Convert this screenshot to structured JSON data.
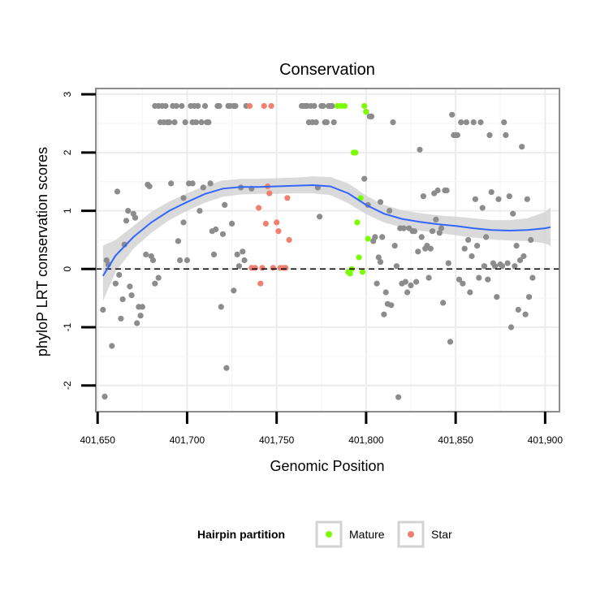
{
  "chart_data": {
    "type": "scatter",
    "title": "Conservation",
    "xlabel": "Genomic Position",
    "ylabel": "phyloP LRT conservation scores",
    "xlim": [
      401649,
      401908
    ],
    "ylim": [
      -2.45,
      3.1
    ],
    "x_ticks": [
      401650,
      401700,
      401750,
      401800,
      401850,
      401900
    ],
    "x_tick_labels": [
      "401,650",
      "401,700",
      "401,750",
      "401,800",
      "401,850",
      "401,900"
    ],
    "y_ticks": [
      -2,
      -1,
      0,
      1,
      2,
      3
    ],
    "y_tick_labels": [
      "-2",
      "-1",
      "0",
      "1",
      "2",
      "3"
    ],
    "grid": true,
    "reference_line": {
      "y": 0,
      "style": "dashed"
    },
    "legend": {
      "title": "Hairpin partition",
      "position": "bottom",
      "entries": [
        {
          "label": "Mature",
          "color": "#7cfc00"
        },
        {
          "label": "Star",
          "color": "#f08070"
        }
      ]
    },
    "colors": {
      "other": "#8c8c8c",
      "Mature": "#7cfc00",
      "Star": "#f08070",
      "smooth_line": "#3366ff",
      "ribbon": "#d3d3d3",
      "panel_border": "#8c8c8c"
    },
    "series": [
      {
        "group": "other",
        "points": [
          [
            401653,
            -0.7
          ],
          [
            401654,
            -2.19
          ],
          [
            401655,
            0.15
          ],
          [
            401656,
            0.08
          ],
          [
            401658,
            -1.32
          ],
          [
            401660,
            -0.25
          ],
          [
            401661,
            1.33
          ],
          [
            401662,
            -0.1
          ],
          [
            401663,
            -0.85
          ],
          [
            401664,
            -0.52
          ],
          [
            401665,
            0.42
          ],
          [
            401666,
            0.83
          ],
          [
            401667,
            1.0
          ],
          [
            401668,
            -0.3
          ],
          [
            401669,
            -0.45
          ],
          [
            401670,
            0.95
          ],
          [
            401671,
            0.88
          ],
          [
            401672,
            -0.93
          ],
          [
            401673,
            -0.65
          ],
          [
            401674,
            -0.8
          ],
          [
            401675,
            -0.65
          ],
          [
            401677,
            0.25
          ],
          [
            401678,
            1.45
          ],
          [
            401679,
            1.42
          ],
          [
            401680,
            0.22
          ],
          [
            401681,
            0.15
          ],
          [
            401682,
            2.8
          ],
          [
            401682,
            -0.25
          ],
          [
            401684,
            2.8
          ],
          [
            401684,
            -0.15
          ],
          [
            401685,
            2.52
          ],
          [
            401686,
            2.8
          ],
          [
            401687,
            2.52
          ],
          [
            401688,
            2.8
          ],
          [
            401689,
            2.52
          ],
          [
            401690,
            2.52
          ],
          [
            401691,
            1.47
          ],
          [
            401692,
            2.8
          ],
          [
            401693,
            2.52
          ],
          [
            401694,
            2.8
          ],
          [
            401695,
            0.48
          ],
          [
            401696,
            0.15
          ],
          [
            401697,
            2.8
          ],
          [
            401698,
            0.8
          ],
          [
            401698,
            1.22
          ],
          [
            401699,
            2.52
          ],
          [
            401700,
            0.15
          ],
          [
            401701,
            1.47
          ],
          [
            401702,
            2.8
          ],
          [
            401703,
            2.52
          ],
          [
            401703,
            1.47
          ],
          [
            401704,
            2.8
          ],
          [
            401705,
            2.52
          ],
          [
            401706,
            2.8
          ],
          [
            401707,
            1.0
          ],
          [
            401708,
            2.52
          ],
          [
            401709,
            1.4
          ],
          [
            401710,
            2.8
          ],
          [
            401711,
            2.52
          ],
          [
            401712,
            2.52
          ],
          [
            401713,
            1.47
          ],
          [
            401714,
            0.65
          ],
          [
            401715,
            0.25
          ],
          [
            401716,
            0.68
          ],
          [
            401717,
            2.8
          ],
          [
            401718,
            2.8
          ],
          [
            401719,
            -0.65
          ],
          [
            401720,
            0.6
          ],
          [
            401721,
            1.1
          ],
          [
            401722,
            -1.7
          ],
          [
            401723,
            2.8
          ],
          [
            401724,
            2.8
          ],
          [
            401725,
            0.78
          ],
          [
            401726,
            2.8
          ],
          [
            401726,
            -0.37
          ],
          [
            401727,
            2.8
          ],
          [
            401728,
            0.25
          ],
          [
            401729,
            0.05
          ],
          [
            401730,
            1.4
          ],
          [
            401731,
            0.3
          ],
          [
            401732,
            0.15
          ],
          [
            401733,
            2.8
          ],
          [
            401736,
            1.38
          ],
          [
            401764,
            2.8
          ],
          [
            401765,
            2.8
          ],
          [
            401766,
            2.8
          ],
          [
            401767,
            2.8
          ],
          [
            401768,
            2.52
          ],
          [
            401769,
            2.8
          ],
          [
            401770,
            2.52
          ],
          [
            401771,
            2.8
          ],
          [
            401772,
            2.52
          ],
          [
            401773,
            1.4
          ],
          [
            401774,
            0.9
          ],
          [
            401775,
            2.8
          ],
          [
            401776,
            2.8
          ],
          [
            401777,
            2.52
          ],
          [
            401778,
            2.52
          ],
          [
            401779,
            2.8
          ],
          [
            401780,
            2.8
          ],
          [
            401781,
            2.8
          ],
          [
            401782,
            2.52
          ],
          [
            401799,
            1.55
          ],
          [
            401800,
            2.7
          ],
          [
            401801,
            1.1
          ],
          [
            401802,
            2.62
          ],
          [
            401803,
            2.62
          ],
          [
            401804,
            0.48
          ],
          [
            401805,
            0.55
          ],
          [
            401806,
            -0.25
          ],
          [
            401807,
            0.2
          ],
          [
            401808,
            1.15
          ],
          [
            401808,
            0.12
          ],
          [
            401809,
            0.55
          ],
          [
            401810,
            -0.78
          ],
          [
            401811,
            -0.4
          ],
          [
            401812,
            -0.6
          ],
          [
            401813,
            1.0
          ],
          [
            401814,
            -0.62
          ],
          [
            401815,
            2.52
          ],
          [
            401816,
            0.4
          ],
          [
            401817,
            0.05
          ],
          [
            401818,
            -2.2
          ],
          [
            401819,
            0.7
          ],
          [
            401820,
            -0.25
          ],
          [
            401821,
            0.7
          ],
          [
            401822,
            -0.22
          ],
          [
            401823,
            -0.4
          ],
          [
            401824,
            0.7
          ],
          [
            401825,
            -0.28
          ],
          [
            401826,
            0.65
          ],
          [
            401827,
            0.65
          ],
          [
            401828,
            -0.22
          ],
          [
            401829,
            0.3
          ],
          [
            401830,
            2.05
          ],
          [
            401831,
            0.55
          ],
          [
            401832,
            1.25
          ],
          [
            401833,
            0.35
          ],
          [
            401834,
            0.4
          ],
          [
            401835,
            -0.15
          ],
          [
            401836,
            0.35
          ],
          [
            401837,
            0.65
          ],
          [
            401838,
            1.3
          ],
          [
            401839,
            0.85
          ],
          [
            401840,
            1.35
          ],
          [
            401841,
            0.62
          ],
          [
            401842,
            0.7
          ],
          [
            401843,
            -0.58
          ],
          [
            401844,
            1.35
          ],
          [
            401845,
            1.35
          ],
          [
            401846,
            0.1
          ],
          [
            401847,
            -1.25
          ],
          [
            401848,
            2.65
          ],
          [
            401849,
            2.3
          ],
          [
            401850,
            2.3
          ],
          [
            401851,
            2.3
          ],
          [
            401852,
            -0.18
          ],
          [
            401853,
            2.52
          ],
          [
            401854,
            -0.25
          ],
          [
            401855,
            0.35
          ],
          [
            401856,
            2.52
          ],
          [
            401857,
            0.5
          ],
          [
            401858,
            -0.4
          ],
          [
            401859,
            0.22
          ],
          [
            401860,
            2.52
          ],
          [
            401861,
            1.2
          ],
          [
            401862,
            0.4
          ],
          [
            401863,
            -0.15
          ],
          [
            401864,
            2.52
          ],
          [
            401865,
            1.05
          ],
          [
            401866,
            0.05
          ],
          [
            401867,
            0.55
          ],
          [
            401868,
            -0.18
          ],
          [
            401869,
            2.3
          ],
          [
            401870,
            1.32
          ],
          [
            401871,
            0.1
          ],
          [
            401872,
            0.05
          ],
          [
            401873,
            -0.48
          ],
          [
            401874,
            1.2
          ],
          [
            401875,
            0.08
          ],
          [
            401876,
            0.05
          ],
          [
            401877,
            2.52
          ],
          [
            401878,
            2.3
          ],
          [
            401879,
            0.1
          ],
          [
            401880,
            1.25
          ],
          [
            401881,
            -1.0
          ],
          [
            401882,
            0.95
          ],
          [
            401883,
            0.05
          ],
          [
            401884,
            0.4
          ],
          [
            401885,
            -0.7
          ],
          [
            401886,
            0.15
          ],
          [
            401887,
            2.1
          ],
          [
            401888,
            0.22
          ],
          [
            401889,
            -0.78
          ],
          [
            401890,
            1.2
          ],
          [
            401891,
            -0.48
          ],
          [
            401892,
            0.5
          ],
          [
            401893,
            -0.15
          ]
        ]
      },
      {
        "group": "Mature",
        "points": [
          [
            401784,
            2.8
          ],
          [
            401786,
            2.8
          ],
          [
            401788,
            2.8
          ],
          [
            401790,
            -0.05
          ],
          [
            401791,
            -0.08
          ],
          [
            401792,
            0.0
          ],
          [
            401793,
            2.0
          ],
          [
            401794,
            2.0
          ],
          [
            401795,
            0.8
          ],
          [
            401796,
            0.2
          ],
          [
            401797,
            1.22
          ],
          [
            401798,
            -0.05
          ],
          [
            401799,
            2.8
          ],
          [
            401800,
            2.7
          ],
          [
            401801,
            0.52
          ]
        ]
      },
      {
        "group": "Star",
        "points": [
          [
            401735,
            2.8
          ],
          [
            401736,
            0.02
          ],
          [
            401738,
            0.02
          ],
          [
            401740,
            1.05
          ],
          [
            401741,
            -0.25
          ],
          [
            401742,
            0.02
          ],
          [
            401743,
            2.8
          ],
          [
            401744,
            0.78
          ],
          [
            401745,
            1.42
          ],
          [
            401746,
            1.3
          ],
          [
            401747,
            2.8
          ],
          [
            401748,
            0.02
          ],
          [
            401750,
            0.8
          ],
          [
            401751,
            0.65
          ],
          [
            401752,
            0.02
          ],
          [
            401754,
            0.02
          ],
          [
            401755,
            0.02
          ],
          [
            401756,
            1.22
          ],
          [
            401757,
            0.5
          ]
        ]
      }
    ],
    "smooth": {
      "x": [
        401653,
        401660,
        401670,
        401680,
        401690,
        401700,
        401710,
        401720,
        401730,
        401740,
        401750,
        401760,
        401770,
        401780,
        401790,
        401800,
        401810,
        401820,
        401830,
        401840,
        401850,
        401860,
        401870,
        401880,
        401890,
        401900,
        401903
      ],
      "y": [
        -0.12,
        0.23,
        0.55,
        0.8,
        1.0,
        1.15,
        1.29,
        1.38,
        1.41,
        1.41,
        1.42,
        1.43,
        1.44,
        1.42,
        1.3,
        1.1,
        0.95,
        0.86,
        0.81,
        0.77,
        0.74,
        0.7,
        0.67,
        0.66,
        0.67,
        0.7,
        0.72
      ],
      "lower": [
        -0.55,
        -0.05,
        0.35,
        0.62,
        0.84,
        1.0,
        1.14,
        1.24,
        1.28,
        1.29,
        1.29,
        1.3,
        1.3,
        1.27,
        1.13,
        0.94,
        0.8,
        0.71,
        0.66,
        0.62,
        0.58,
        0.54,
        0.51,
        0.49,
        0.48,
        0.44,
        0.4
      ],
      "upper": [
        0.4,
        0.5,
        0.74,
        0.98,
        1.16,
        1.3,
        1.43,
        1.52,
        1.55,
        1.55,
        1.56,
        1.57,
        1.59,
        1.58,
        1.47,
        1.26,
        1.1,
        1.01,
        0.96,
        0.92,
        0.9,
        0.87,
        0.84,
        0.84,
        0.87,
        0.98,
        1.06
      ]
    }
  }
}
